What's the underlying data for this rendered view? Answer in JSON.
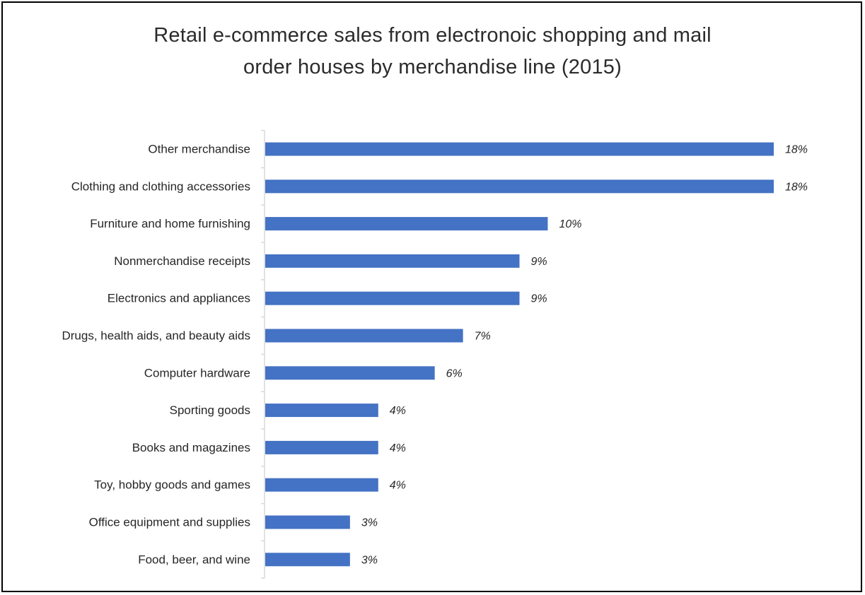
{
  "chart_data": {
    "type": "bar",
    "orientation": "horizontal",
    "title": "Retail e-commerce sales from electronoic shopping and mail order houses by merchandise line (2015)",
    "title_lines": [
      "Retail e-commerce sales from electronoic shopping and mail",
      "order houses by merchandise line (2015)"
    ],
    "categories": [
      "Other merchandise",
      "Clothing and clothing accessories",
      "Furniture and home furnishing",
      "Nonmerchandise receipts",
      "Electronics and appliances",
      "Drugs, health aids, and beauty aids",
      "Computer hardware",
      "Sporting goods",
      "Books and magazines",
      "Toy, hobby goods and games",
      "Office equipment and supplies",
      "Food, beer, and wine"
    ],
    "values": [
      18,
      18,
      10,
      9,
      9,
      7,
      6,
      4,
      4,
      4,
      3,
      3
    ],
    "value_labels": [
      "18%",
      "18%",
      "10%",
      "9%",
      "9%",
      "7%",
      "6%",
      "4%",
      "4%",
      "4%",
      "3%",
      "3%"
    ],
    "unit": "%",
    "xlabel": "",
    "ylabel": "",
    "xlim": [
      0,
      18
    ],
    "grid": false,
    "legend": "none",
    "bar_color": "#4472C4",
    "axis_color": "#D9D9D9"
  }
}
